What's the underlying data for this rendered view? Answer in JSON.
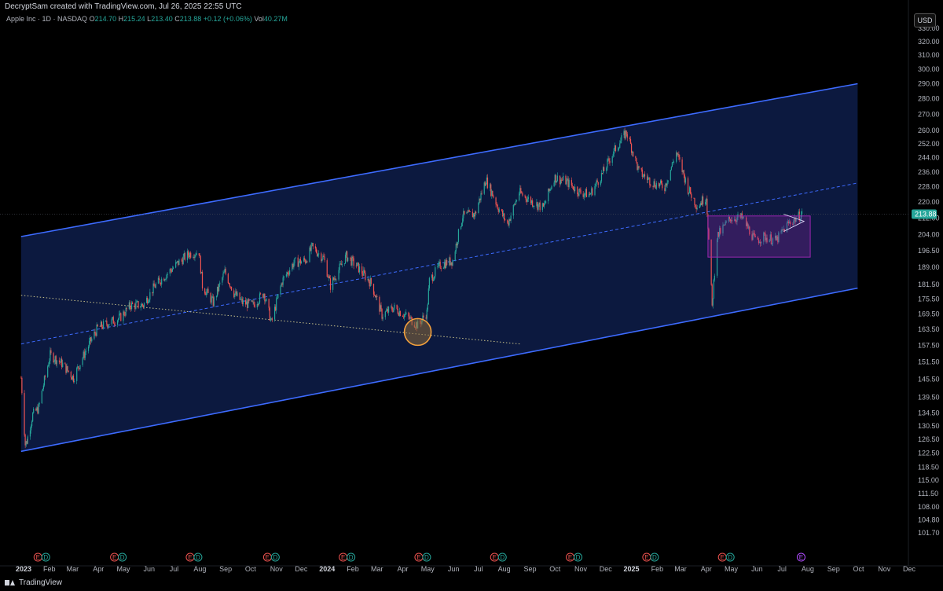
{
  "header": {
    "attribution": "DecryptSam created with TradingView.com, Jul 26, 2025 22:55 UTC",
    "symbol": "Apple Inc · 1D · NASDAQ",
    "open_label": "O",
    "open": "214.70",
    "high_label": "H",
    "high": "215.24",
    "low_label": "L",
    "low": "213.40",
    "close_label": "C",
    "close": "213.88",
    "change": "+0.12 (+0.06%)",
    "vol_label": "Vol",
    "vol": "40.27M",
    "currency": "USD"
  },
  "footer": {
    "brand": "TradingView"
  },
  "colors": {
    "background": "#000000",
    "channel_line": "#3d6bff",
    "channel_fill": "#0e1d4a",
    "up_candle": "#26a69a",
    "down_candle": "#ef5350",
    "price_tag": "#26a69a",
    "circle": "#f2a03d",
    "box": "#9c27b0"
  },
  "chart_data": {
    "type": "candlestick",
    "symbol": "AAPL",
    "interval": "1D",
    "last_price": "213.88",
    "price_scale": "log",
    "price_ticks": [
      "330.00",
      "320.00",
      "310.00",
      "300.00",
      "290.00",
      "280.00",
      "270.00",
      "260.00",
      "252.00",
      "244.00",
      "236.00",
      "228.00",
      "220.00",
      "212.00",
      "204.00",
      "196.50",
      "189.00",
      "181.50",
      "175.50",
      "169.50",
      "163.50",
      "157.50",
      "151.50",
      "145.50",
      "139.50",
      "134.50",
      "130.50",
      "126.50",
      "122.50",
      "118.50",
      "115.00",
      "111.50",
      "108.00",
      "104.80",
      "101.70"
    ],
    "x_ticks": [
      {
        "label": "2023",
        "date": "2023-01-01",
        "bold": true
      },
      {
        "label": "Feb",
        "date": "2023-02-01"
      },
      {
        "label": "Mar",
        "date": "2023-03-01"
      },
      {
        "label": "Apr",
        "date": "2023-04-01"
      },
      {
        "label": "May",
        "date": "2023-05-01"
      },
      {
        "label": "Jun",
        "date": "2023-06-01"
      },
      {
        "label": "Jul",
        "date": "2023-07-01"
      },
      {
        "label": "Aug",
        "date": "2023-08-01"
      },
      {
        "label": "Sep",
        "date": "2023-09-01"
      },
      {
        "label": "Oct",
        "date": "2023-10-01"
      },
      {
        "label": "Nov",
        "date": "2023-11-01"
      },
      {
        "label": "Dec",
        "date": "2023-12-01"
      },
      {
        "label": "2024",
        "date": "2024-01-01",
        "bold": true
      },
      {
        "label": "Feb",
        "date": "2024-02-01"
      },
      {
        "label": "Mar",
        "date": "2024-03-01"
      },
      {
        "label": "Apr",
        "date": "2024-04-01"
      },
      {
        "label": "May",
        "date": "2024-05-01"
      },
      {
        "label": "Jun",
        "date": "2024-06-01"
      },
      {
        "label": "Jul",
        "date": "2024-07-01"
      },
      {
        "label": "Aug",
        "date": "2024-08-01"
      },
      {
        "label": "Sep",
        "date": "2024-09-01"
      },
      {
        "label": "Oct",
        "date": "2024-10-01"
      },
      {
        "label": "Nov",
        "date": "2024-11-01"
      },
      {
        "label": "Dec",
        "date": "2024-12-01"
      },
      {
        "label": "2025",
        "date": "2025-01-01",
        "bold": true
      },
      {
        "label": "Feb",
        "date": "2025-02-01"
      },
      {
        "label": "Mar",
        "date": "2025-03-01"
      },
      {
        "label": "Apr",
        "date": "2025-04-01"
      },
      {
        "label": "May",
        "date": "2025-05-01"
      },
      {
        "label": "Jun",
        "date": "2025-06-01"
      },
      {
        "label": "Jul",
        "date": "2025-07-01"
      },
      {
        "label": "Aug",
        "date": "2025-08-01"
      },
      {
        "label": "Sep",
        "date": "2025-09-01"
      },
      {
        "label": "Oct",
        "date": "2025-10-01"
      },
      {
        "label": "Nov",
        "date": "2025-11-01"
      },
      {
        "label": "Dec",
        "date": "2025-12-01"
      }
    ],
    "price_path": [
      [
        "2022-12-29",
        146
      ],
      [
        "2023-01-03",
        125
      ],
      [
        "2023-01-05",
        126
      ],
      [
        "2023-01-12",
        134
      ],
      [
        "2023-01-19",
        136
      ],
      [
        "2023-02-02",
        154
      ],
      [
        "2023-02-16",
        151
      ],
      [
        "2023-03-02",
        146
      ],
      [
        "2023-03-16",
        155
      ],
      [
        "2023-03-31",
        164
      ],
      [
        "2023-04-13",
        166
      ],
      [
        "2023-04-27",
        168
      ],
      [
        "2023-05-10",
        173
      ],
      [
        "2023-05-25",
        173
      ],
      [
        "2023-06-08",
        181
      ],
      [
        "2023-06-22",
        186
      ],
      [
        "2023-07-06",
        191
      ],
      [
        "2023-07-19",
        195
      ],
      [
        "2023-07-31",
        196
      ],
      [
        "2023-08-04",
        181
      ],
      [
        "2023-08-17",
        174
      ],
      [
        "2023-08-31",
        187
      ],
      [
        "2023-09-11",
        178
      ],
      [
        "2023-09-21",
        174
      ],
      [
        "2023-10-04",
        173
      ],
      [
        "2023-10-17",
        178
      ],
      [
        "2023-10-26",
        166
      ],
      [
        "2023-11-08",
        183
      ],
      [
        "2023-11-22",
        191
      ],
      [
        "2023-12-06",
        192
      ],
      [
        "2023-12-14",
        198
      ],
      [
        "2023-12-28",
        193
      ],
      [
        "2024-01-05",
        181
      ],
      [
        "2024-01-24",
        194
      ],
      [
        "2024-02-07",
        189
      ],
      [
        "2024-02-23",
        182
      ],
      [
        "2024-03-07",
        169
      ],
      [
        "2024-03-21",
        172
      ],
      [
        "2024-04-04",
        169
      ],
      [
        "2024-04-19",
        165
      ],
      [
        "2024-04-30",
        170
      ],
      [
        "2024-05-03",
        183
      ],
      [
        "2024-05-16",
        190
      ],
      [
        "2024-05-31",
        192
      ],
      [
        "2024-06-12",
        213
      ],
      [
        "2024-06-27",
        214
      ],
      [
        "2024-07-10",
        232
      ],
      [
        "2024-07-25",
        217
      ],
      [
        "2024-08-05",
        209
      ],
      [
        "2024-08-19",
        225
      ],
      [
        "2024-09-04",
        220
      ],
      [
        "2024-09-17",
        217
      ],
      [
        "2024-09-30",
        233
      ],
      [
        "2024-10-14",
        231
      ],
      [
        "2024-10-31",
        225
      ],
      [
        "2024-11-12",
        224
      ],
      [
        "2024-11-27",
        235
      ],
      [
        "2024-12-10",
        247
      ],
      [
        "2024-12-26",
        259
      ],
      [
        "2025-01-10",
        236
      ],
      [
        "2025-01-27",
        230
      ],
      [
        "2025-02-10",
        228
      ],
      [
        "2025-02-24",
        247
      ],
      [
        "2025-03-10",
        227
      ],
      [
        "2025-03-21",
        218
      ],
      [
        "2025-04-01",
        223
      ],
      [
        "2025-04-08",
        172
      ],
      [
        "2025-04-14",
        203
      ],
      [
        "2025-04-30",
        212
      ],
      [
        "2025-05-14",
        212
      ],
      [
        "2025-05-30",
        201
      ],
      [
        "2025-06-10",
        203
      ],
      [
        "2025-06-24",
        201
      ],
      [
        "2025-07-08",
        209
      ],
      [
        "2025-07-25",
        213.88
      ]
    ],
    "annotations": {
      "channel_upper": {
        "from": [
          "2022-12-29",
          203
        ],
        "to": [
          "2025-09-30",
          290
        ]
      },
      "channel_mid": {
        "from": [
          "2022-12-29",
          158
        ],
        "to": [
          "2025-09-30",
          230
        ]
      },
      "channel_lower": {
        "from": [
          "2022-12-29",
          123
        ],
        "to": [
          "2025-09-30",
          180
        ]
      },
      "dotted_trendline": {
        "from": [
          "2022-12-29",
          177
        ],
        "to": [
          "2024-08-20",
          158
        ]
      },
      "support_circle": {
        "date": "2024-04-19",
        "price": 162.5
      },
      "consolidation_box": {
        "from": [
          "2025-04-03",
          213
        ],
        "to": [
          "2025-08-04",
          193.5
        ]
      },
      "last_price_line": "213.88"
    },
    "events": [
      {
        "date": "2023-01-23",
        "types": [
          "E",
          "D"
        ]
      },
      {
        "date": "2023-04-25",
        "types": [
          "E",
          "D"
        ]
      },
      {
        "date": "2023-07-25",
        "types": [
          "E",
          "D"
        ]
      },
      {
        "date": "2023-10-26",
        "types": [
          "E",
          "D"
        ]
      },
      {
        "date": "2024-01-25",
        "types": [
          "E",
          "D"
        ]
      },
      {
        "date": "2024-04-25",
        "types": [
          "E",
          "D"
        ]
      },
      {
        "date": "2024-07-25",
        "types": [
          "E",
          "D"
        ]
      },
      {
        "date": "2024-10-24",
        "types": [
          "E",
          "D"
        ]
      },
      {
        "date": "2025-01-24",
        "types": [
          "E",
          "D"
        ]
      },
      {
        "date": "2025-04-25",
        "types": [
          "E",
          "D"
        ]
      },
      {
        "date": "2025-07-24",
        "types": [
          "E"
        ]
      }
    ]
  }
}
